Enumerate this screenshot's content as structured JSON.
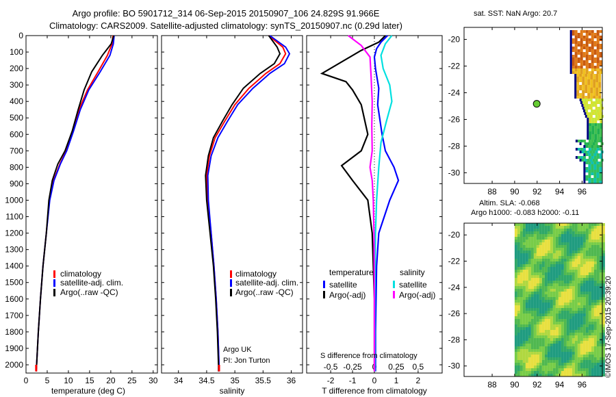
{
  "titles": {
    "line1": "Argo profile: BO 5901712_314 06-Sep-2015 20150907_106 24.829S 91.966E",
    "line2": "Climatology: CARS2009. Satellite-adjusted climatology: synTS_20150907.nc (0.29d later)"
  },
  "map_titles": {
    "sst": "sat. SST: NaN Argo: 20.7",
    "sla1": "Altim. SLA: -0.068",
    "sla2": "Argo h1000: -0.083 h2000: -0.11"
  },
  "notes": {
    "argo_uk": "Argo UK",
    "pi": "PI: Jon Turton",
    "s_diff_label": "S difference from climatology",
    "timestamp": "©IMOS 17-Sep-2015 20:39:20"
  },
  "colors": {
    "climatology": "#ff0000",
    "satellite": "#0000ff",
    "argo": "#000000",
    "sal_sat": "#00e0e0",
    "sal_argo": "#ff00ff"
  },
  "chart_data": [
    {
      "type": "line",
      "name": "temperature",
      "xlabel": "temperature (deg C)",
      "ylabel": "",
      "xlim": [
        0,
        31
      ],
      "ylim": [
        2050,
        0
      ],
      "x_ticks": [
        0,
        5,
        10,
        15,
        20,
        25,
        30
      ],
      "y_ticks": [
        0,
        100,
        200,
        300,
        400,
        500,
        600,
        700,
        800,
        900,
        1000,
        1100,
        1200,
        1300,
        1400,
        1500,
        1600,
        1700,
        1800,
        1900,
        2000
      ],
      "legend": [
        "climatology",
        "satellite-adj. clim.",
        "Argo(..raw -QC)"
      ],
      "series": [
        {
          "name": "climatology",
          "color": "#ff0000",
          "points": [
            [
              20.5,
              0
            ],
            [
              20.3,
              50
            ],
            [
              19.2,
              120
            ],
            [
              17.0,
              220
            ],
            [
              14.5,
              330
            ],
            [
              12.5,
              450
            ],
            [
              11.0,
              580
            ],
            [
              9.5,
              700
            ],
            [
              8.0,
              780
            ],
            [
              6.5,
              880
            ],
            [
              5.5,
              1000
            ],
            [
              4.8,
              1200
            ],
            [
              4.0,
              1400
            ],
            [
              3.4,
              1600
            ],
            [
              2.9,
              1800
            ],
            [
              2.5,
              2000
            ],
            [
              2.4,
              2040
            ]
          ]
        },
        {
          "name": "satellite-adj. clim.",
          "color": "#0000ff",
          "points": [
            [
              20.8,
              0
            ],
            [
              20.6,
              50
            ],
            [
              19.8,
              120
            ],
            [
              17.5,
              220
            ],
            [
              14.8,
              330
            ],
            [
              12.8,
              450
            ],
            [
              11.2,
              580
            ],
            [
              9.6,
              700
            ],
            [
              8.1,
              780
            ],
            [
              6.6,
              880
            ],
            [
              5.6,
              1000
            ],
            [
              4.8,
              1200
            ],
            [
              4.0,
              1400
            ],
            [
              3.4,
              1600
            ],
            [
              2.9,
              1800
            ],
            [
              2.5,
              2000
            ],
            [
              2.4,
              2040
            ]
          ]
        },
        {
          "name": "Argo(..raw -QC)",
          "color": "#000000",
          "points": [
            [
              20.7,
              0
            ],
            [
              20.1,
              50
            ],
            [
              18.0,
              120
            ],
            [
              15.5,
              220
            ],
            [
              13.7,
              330
            ],
            [
              12.3,
              450
            ],
            [
              10.9,
              580
            ],
            [
              9.2,
              700
            ],
            [
              7.5,
              780
            ],
            [
              6.2,
              880
            ],
            [
              5.4,
              1000
            ],
            [
              4.8,
              1200
            ],
            [
              4.0,
              1400
            ],
            [
              3.4,
              1600
            ],
            [
              2.9,
              1800
            ],
            [
              2.5,
              2000
            ],
            [
              2.4,
              2040
            ]
          ]
        }
      ]
    },
    {
      "type": "line",
      "name": "salinity",
      "xlabel": "salinity",
      "ylabel": "",
      "xlim": [
        33.7,
        36.2
      ],
      "ylim": [
        2050,
        0
      ],
      "x_ticks": [
        34,
        34.5,
        35,
        35.5,
        36
      ],
      "legend": [
        "climatology",
        "satellite-adj. clim.",
        "Argo(..raw -QC)"
      ],
      "series": [
        {
          "name": "climatology",
          "color": "#ff0000",
          "points": [
            [
              35.6,
              0
            ],
            [
              35.85,
              70
            ],
            [
              35.9,
              110
            ],
            [
              35.8,
              170
            ],
            [
              35.55,
              230
            ],
            [
              35.25,
              320
            ],
            [
              35.0,
              420
            ],
            [
              34.82,
              520
            ],
            [
              34.65,
              620
            ],
            [
              34.55,
              730
            ],
            [
              34.5,
              850
            ],
            [
              34.52,
              1000
            ],
            [
              34.58,
              1200
            ],
            [
              34.63,
              1400
            ],
            [
              34.67,
              1600
            ],
            [
              34.7,
              1800
            ],
            [
              34.72,
              2000
            ],
            [
              34.72,
              2040
            ]
          ]
        },
        {
          "name": "satellite-adj. clim.",
          "color": "#0000ff",
          "points": [
            [
              35.62,
              0
            ],
            [
              35.9,
              70
            ],
            [
              35.97,
              110
            ],
            [
              35.88,
              170
            ],
            [
              35.62,
              230
            ],
            [
              35.32,
              320
            ],
            [
              35.05,
              420
            ],
            [
              34.87,
              520
            ],
            [
              34.7,
              620
            ],
            [
              34.58,
              730
            ],
            [
              34.52,
              850
            ],
            [
              34.53,
              1000
            ],
            [
              34.58,
              1200
            ],
            [
              34.63,
              1400
            ],
            [
              34.67,
              1600
            ],
            [
              34.7,
              1800
            ],
            [
              34.72,
              2000
            ],
            [
              34.72,
              2040
            ]
          ]
        },
        {
          "name": "Argo(..raw -QC)",
          "color": "#000000",
          "points": [
            [
              35.6,
              0
            ],
            [
              35.75,
              70
            ],
            [
              35.8,
              110
            ],
            [
              35.7,
              170
            ],
            [
              35.45,
              230
            ],
            [
              35.15,
              320
            ],
            [
              34.95,
              420
            ],
            [
              34.78,
              520
            ],
            [
              34.62,
              620
            ],
            [
              34.53,
              730
            ],
            [
              34.48,
              850
            ],
            [
              34.5,
              1000
            ],
            [
              34.56,
              1200
            ],
            [
              34.62,
              1400
            ],
            [
              34.66,
              1600
            ],
            [
              34.69,
              1800
            ],
            [
              34.71,
              2000
            ],
            [
              34.71,
              2040
            ]
          ]
        }
      ]
    },
    {
      "type": "line",
      "name": "difference",
      "xlabel": "T difference from climatology",
      "top_xlabel": "S difference from climatology",
      "xlim": [
        -3.1,
        3.1
      ],
      "ylim": [
        2050,
        0
      ],
      "x_ticks": [
        -2,
        -1,
        0,
        1,
        2
      ],
      "top_tick_labels": [
        "-0.5",
        "-0.25",
        "0",
        "0.25",
        "0.5"
      ],
      "top_tick_positions": [
        -2,
        -1,
        0,
        1,
        2
      ],
      "legend_groups": [
        {
          "title": "temperature",
          "items": [
            "satellite",
            "Argo(-adj)"
          ]
        },
        {
          "title": "salinity",
          "items": [
            "satellite",
            "Argo(-adj)"
          ]
        }
      ],
      "series": [
        {
          "name": "T satellite",
          "color": "#0000ff",
          "points": [
            [
              0.6,
              0
            ],
            [
              0.3,
              40
            ],
            [
              0.1,
              80
            ],
            [
              0.0,
              130
            ],
            [
              0.05,
              200
            ],
            [
              0.2,
              320
            ],
            [
              0.15,
              420
            ],
            [
              0.35,
              600
            ],
            [
              0.5,
              700
            ],
            [
              0.9,
              800
            ],
            [
              1.1,
              880
            ],
            [
              0.7,
              1000
            ],
            [
              0.2,
              1200
            ],
            [
              0.1,
              1400
            ],
            [
              0.05,
              1800
            ],
            [
              0.05,
              2000
            ],
            [
              0.05,
              2040
            ]
          ]
        },
        {
          "name": "T Argo(-adj)",
          "color": "#000000",
          "points": [
            [
              0.5,
              0
            ],
            [
              0.2,
              40
            ],
            [
              -0.6,
              90
            ],
            [
              -2.4,
              230
            ],
            [
              -1.3,
              280
            ],
            [
              -1.0,
              330
            ],
            [
              -0.6,
              420
            ],
            [
              -0.3,
              600
            ],
            [
              -0.6,
              700
            ],
            [
              -1.5,
              790
            ],
            [
              -1.0,
              880
            ],
            [
              -0.3,
              1000
            ],
            [
              -0.1,
              1200
            ],
            [
              -0.05,
              1400
            ],
            [
              0.0,
              1600
            ],
            [
              0.0,
              1800
            ],
            [
              0.0,
              2040
            ]
          ]
        },
        {
          "name": "S satellite",
          "color": "#00e0e0",
          "points": [
            [
              0.8,
              0
            ],
            [
              0.5,
              50
            ],
            [
              0.3,
              120
            ],
            [
              0.4,
              200
            ],
            [
              0.7,
              300
            ],
            [
              0.8,
              400
            ],
            [
              0.55,
              520
            ],
            [
              0.3,
              650
            ],
            [
              0.2,
              800
            ],
            [
              0.1,
              1000
            ],
            [
              0.05,
              1200
            ],
            [
              0.02,
              1600
            ],
            [
              0.02,
              2040
            ]
          ]
        },
        {
          "name": "S Argo(-adj)",
          "color": "#ff00ff",
          "points": [
            [
              -1.2,
              0
            ],
            [
              -0.6,
              60
            ],
            [
              -0.2,
              130
            ],
            [
              -0.15,
              250
            ],
            [
              -0.1,
              400
            ],
            [
              -0.12,
              550
            ],
            [
              -0.1,
              700
            ],
            [
              -0.2,
              800
            ],
            [
              -0.1,
              880
            ],
            [
              -0.05,
              1000
            ],
            [
              -0.02,
              1200
            ],
            [
              0.0,
              1600
            ],
            [
              0.0,
              2040
            ]
          ]
        }
      ]
    },
    {
      "type": "heatmap",
      "name": "sst-map",
      "title": "sat. SST: NaN Argo: 20.7",
      "xlim": [
        85.5,
        97.8
      ],
      "ylim": [
        -30.8,
        -19.1
      ],
      "x_ticks": [
        88,
        90,
        92,
        94,
        96
      ],
      "y_ticks": [
        -20,
        -22,
        -24,
        -26,
        -28,
        -30
      ],
      "argo_point": [
        91.966,
        -24.829
      ],
      "argo_color": "#66cc33"
    },
    {
      "type": "heatmap",
      "name": "sla-map",
      "title": "Altim. SLA: -0.068",
      "xlim": [
        85.5,
        97.8
      ],
      "ylim": [
        -30.8,
        -19.1
      ],
      "x_ticks": [
        88,
        90,
        92,
        94,
        96
      ],
      "y_ticks": [
        -20,
        -22,
        -24,
        -26,
        -28,
        -30
      ],
      "data_xmin": 90
    }
  ]
}
